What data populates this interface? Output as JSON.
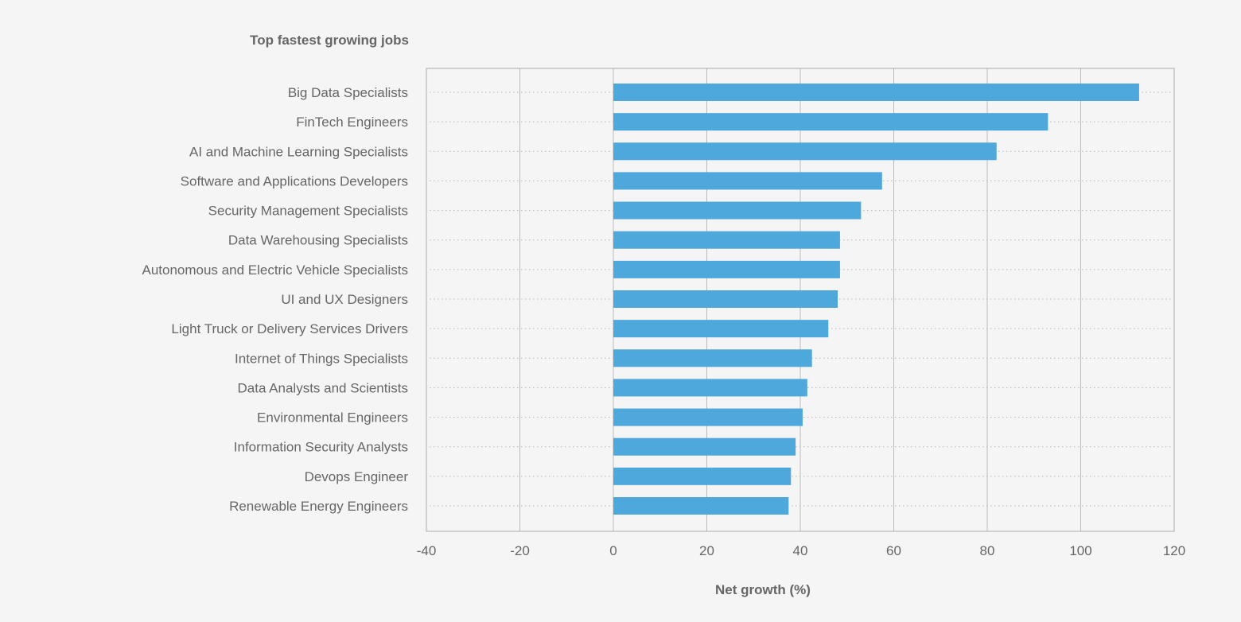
{
  "chart_data": {
    "type": "bar",
    "orientation": "horizontal",
    "title": "Top fastest growing jobs",
    "xlabel": "Net growth (%)",
    "ylabel": "",
    "xlim": [
      -40,
      120
    ],
    "x_ticks": [
      "-40",
      "-20",
      "0",
      "20",
      "40",
      "60",
      "80",
      "100",
      "120"
    ],
    "grid": true,
    "legend": "none",
    "bar_color": "#4fa8dc",
    "categories": [
      "Big Data Specialists",
      "FinTech Engineers",
      "AI and Machine Learning Specialists",
      "Software and Applications Developers",
      "Security Management Specialists",
      "Data Warehousing Specialists",
      "Autonomous and Electric Vehicle Specialists",
      "UI and UX Designers",
      "Light Truck or Delivery Services Drivers",
      "Internet of Things Specialists",
      "Data Analysts and Scientists",
      "Environmental Engineers",
      "Information Security Analysts",
      "Devops Engineer",
      "Renewable Energy Engineers"
    ],
    "values": [
      112.5,
      93,
      82,
      57.5,
      53,
      48.5,
      48.5,
      48,
      46,
      42.5,
      41.5,
      40.5,
      39,
      38,
      37.5
    ]
  }
}
